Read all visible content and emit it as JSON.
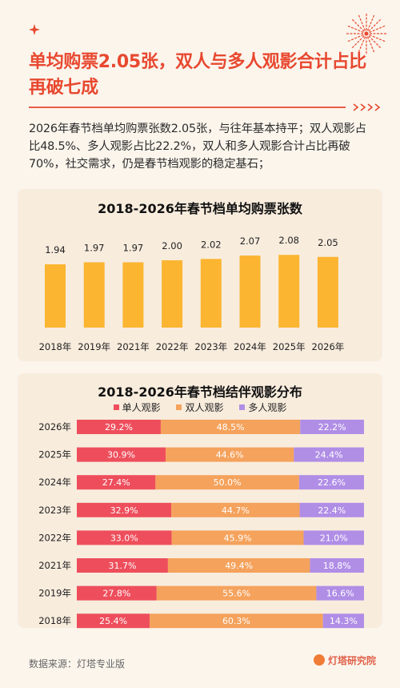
{
  "headline": "单均购票2.05张，双人与多人观影合计占比再破七成",
  "intro": "2026年春节档单均购票张数2.05张，与往年基本持平；双人观影占比48.5%、多人观影占比22.2%，双人和多人观影合计占比再破70%，社交需求，仍是春节档观影的稳定基石；",
  "source": "数据来源：灯塔专业版",
  "logo": "灯塔研究院",
  "colors": {
    "accent": "#e8482f",
    "bar": "#fbb531",
    "single": "#ee4e5c",
    "double": "#f5a25c",
    "multi": "#b08ee6"
  },
  "chart_data": [
    {
      "type": "bar",
      "title": "2018-2026年春节档单均购票张数",
      "categories": [
        "2018年",
        "2019年",
        "2021年",
        "2022年",
        "2023年",
        "2024年",
        "2025年",
        "2026年"
      ],
      "values": [
        1.94,
        1.97,
        1.97,
        2.0,
        2.02,
        2.07,
        2.08,
        2.05
      ],
      "value_labels": [
        "1.94",
        "1.97",
        "1.97",
        "2.00",
        "2.02",
        "2.07",
        "2.08",
        "2.05"
      ],
      "grid": false
    },
    {
      "type": "bar",
      "orientation": "horizontal",
      "stacked": true,
      "title": "2018-2026年春节档结伴观影分布",
      "categories": [
        "2026年",
        "2025年",
        "2024年",
        "2023年",
        "2022年",
        "2021年",
        "2019年",
        "2018年"
      ],
      "series": [
        {
          "name": "单人观影",
          "values": [
            29.2,
            30.9,
            27.4,
            32.9,
            33.0,
            31.7,
            27.8,
            25.4
          ]
        },
        {
          "name": "双人观影",
          "values": [
            48.5,
            44.6,
            50.0,
            44.7,
            45.9,
            49.4,
            55.6,
            60.3
          ]
        },
        {
          "name": "多人观影",
          "values": [
            22.2,
            24.4,
            22.6,
            22.4,
            21.0,
            18.8,
            16.6,
            14.3
          ]
        }
      ],
      "value_labels": [
        [
          "29.2%",
          "48.5%",
          "22.2%"
        ],
        [
          "30.9%",
          "44.6%",
          "24.4%"
        ],
        [
          "27.4%",
          "50.0%",
          "22.6%"
        ],
        [
          "32.9%",
          "44.7%",
          "22.4%"
        ],
        [
          "33.0%",
          "45.9%",
          "21.0%"
        ],
        [
          "31.7%",
          "49.4%",
          "18.8%"
        ],
        [
          "27.8%",
          "55.6%",
          "16.6%"
        ],
        [
          "25.4%",
          "60.3%",
          "14.3%"
        ]
      ],
      "legend_position": "top",
      "grid": false
    }
  ]
}
